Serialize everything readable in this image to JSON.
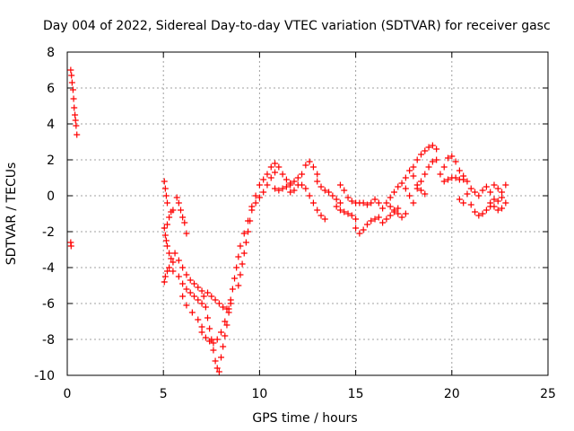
{
  "chart_data": {
    "type": "scatter",
    "title": "Day 004 of 2022, Sidereal Day-to-day VTEC variation (SDTVAR) for receiver gasc",
    "xlabel": "GPS time / hours",
    "ylabel": "SDTVAR / TECUs",
    "xlim": [
      0,
      25
    ],
    "ylim": [
      -10,
      8
    ],
    "xticks": [
      "0",
      "5",
      "10",
      "15",
      "20",
      "25"
    ],
    "yticks": [
      "-10",
      "-8",
      "-6",
      "-4",
      "-2",
      "0",
      "2",
      "4",
      "6",
      "8"
    ],
    "grid": true,
    "marker": "+",
    "series": [
      {
        "name": "SDTVAR",
        "color": "#ff0000",
        "points": [
          [
            0.18,
            7.0
          ],
          [
            0.22,
            6.7
          ],
          [
            0.25,
            6.3
          ],
          [
            0.3,
            5.9
          ],
          [
            0.33,
            5.4
          ],
          [
            0.36,
            4.9
          ],
          [
            0.4,
            4.5
          ],
          [
            0.43,
            4.2
          ],
          [
            0.46,
            3.9
          ],
          [
            0.5,
            3.4
          ],
          [
            0.18,
            -2.6
          ],
          [
            0.2,
            -2.8
          ],
          [
            5.05,
            0.8
          ],
          [
            5.1,
            0.4
          ],
          [
            5.15,
            0.0
          ],
          [
            5.2,
            -0.4
          ],
          [
            5.05,
            -1.8
          ],
          [
            5.1,
            -2.2
          ],
          [
            5.15,
            -2.5
          ],
          [
            5.2,
            -2.8
          ],
          [
            5.3,
            -3.2
          ],
          [
            5.4,
            -3.5
          ],
          [
            5.5,
            -3.7
          ],
          [
            5.2,
            -1.6
          ],
          [
            5.3,
            -1.2
          ],
          [
            5.4,
            -0.9
          ],
          [
            5.5,
            -0.8
          ],
          [
            5.05,
            -4.8
          ],
          [
            5.1,
            -4.5
          ],
          [
            5.2,
            -4.2
          ],
          [
            5.3,
            -4.0
          ],
          [
            5.5,
            -4.2
          ],
          [
            5.7,
            -0.1
          ],
          [
            5.8,
            -0.4
          ],
          [
            5.9,
            -0.8
          ],
          [
            6.0,
            -1.2
          ],
          [
            6.1,
            -1.5
          ],
          [
            6.2,
            -2.1
          ],
          [
            5.6,
            -3.2
          ],
          [
            5.8,
            -3.6
          ],
          [
            6.0,
            -4.0
          ],
          [
            6.2,
            -4.4
          ],
          [
            6.4,
            -4.7
          ],
          [
            6.6,
            -4.9
          ],
          [
            6.8,
            -5.1
          ],
          [
            7.0,
            -5.3
          ],
          [
            5.8,
            -4.5
          ],
          [
            6.0,
            -4.9
          ],
          [
            6.2,
            -5.2
          ],
          [
            6.4,
            -5.4
          ],
          [
            6.6,
            -5.6
          ],
          [
            6.8,
            -5.8
          ],
          [
            7.0,
            -6.0
          ],
          [
            6.0,
            -5.6
          ],
          [
            6.2,
            -6.1
          ],
          [
            6.5,
            -6.5
          ],
          [
            6.8,
            -6.9
          ],
          [
            7.0,
            -7.3
          ],
          [
            7.1,
            -5.6
          ],
          [
            7.2,
            -6.2
          ],
          [
            7.3,
            -6.8
          ],
          [
            7.4,
            -7.4
          ],
          [
            7.5,
            -8.0
          ],
          [
            7.6,
            -8.6
          ],
          [
            7.7,
            -9.2
          ],
          [
            7.8,
            -9.6
          ],
          [
            7.9,
            -9.8
          ],
          [
            7.0,
            -7.6
          ],
          [
            7.2,
            -7.9
          ],
          [
            7.4,
            -8.1
          ],
          [
            7.6,
            -8.2
          ],
          [
            7.8,
            -8.0
          ],
          [
            8.0,
            -7.6
          ],
          [
            8.2,
            -7.0
          ],
          [
            8.4,
            -6.3
          ],
          [
            7.3,
            -5.4
          ],
          [
            7.5,
            -5.6
          ],
          [
            7.7,
            -5.8
          ],
          [
            7.9,
            -6.0
          ],
          [
            8.1,
            -6.2
          ],
          [
            8.3,
            -6.3
          ],
          [
            8.5,
            -6.0
          ],
          [
            8.0,
            -9.0
          ],
          [
            8.1,
            -8.4
          ],
          [
            8.2,
            -7.8
          ],
          [
            8.3,
            -7.2
          ],
          [
            8.4,
            -6.5
          ],
          [
            8.5,
            -5.8
          ],
          [
            8.6,
            -5.2
          ],
          [
            8.7,
            -4.6
          ],
          [
            8.8,
            -4.0
          ],
          [
            8.9,
            -3.4
          ],
          [
            9.0,
            -2.8
          ],
          [
            9.2,
            -2.1
          ],
          [
            9.4,
            -1.4
          ],
          [
            9.6,
            -0.6
          ],
          [
            9.8,
            0.0
          ],
          [
            10.0,
            0.6
          ],
          [
            8.9,
            -5.0
          ],
          [
            9.0,
            -4.4
          ],
          [
            9.1,
            -3.8
          ],
          [
            9.2,
            -3.2
          ],
          [
            9.3,
            -2.6
          ],
          [
            9.4,
            -2.0
          ],
          [
            9.5,
            -1.4
          ],
          [
            9.6,
            -0.8
          ],
          [
            9.8,
            -0.4
          ],
          [
            10.0,
            -0.1
          ],
          [
            10.2,
            0.2
          ],
          [
            10.4,
            0.6
          ],
          [
            10.6,
            1.0
          ],
          [
            10.8,
            1.3
          ],
          [
            10.2,
            0.9
          ],
          [
            10.4,
            1.2
          ],
          [
            10.6,
            1.6
          ],
          [
            10.8,
            1.8
          ],
          [
            11.0,
            1.6
          ],
          [
            11.2,
            1.2
          ],
          [
            11.4,
            0.9
          ],
          [
            11.6,
            0.7
          ],
          [
            10.8,
            0.4
          ],
          [
            11.0,
            0.3
          ],
          [
            11.2,
            0.4
          ],
          [
            11.4,
            0.5
          ],
          [
            11.6,
            0.6
          ],
          [
            11.8,
            0.8
          ],
          [
            12.0,
            1.0
          ],
          [
            11.6,
            0.2
          ],
          [
            11.8,
            0.3
          ],
          [
            12.0,
            0.6
          ],
          [
            12.2,
            1.2
          ],
          [
            12.4,
            1.7
          ],
          [
            12.6,
            1.9
          ],
          [
            12.8,
            1.6
          ],
          [
            13.0,
            1.2
          ],
          [
            12.2,
            0.6
          ],
          [
            12.4,
            0.4
          ],
          [
            12.6,
            0.0
          ],
          [
            12.8,
            -0.4
          ],
          [
            13.0,
            -0.8
          ],
          [
            13.2,
            -1.1
          ],
          [
            13.4,
            -1.3
          ],
          [
            13.0,
            0.8
          ],
          [
            13.2,
            0.5
          ],
          [
            13.4,
            0.3
          ],
          [
            13.6,
            0.2
          ],
          [
            13.8,
            0.0
          ],
          [
            14.0,
            -0.2
          ],
          [
            14.2,
            -0.4
          ],
          [
            14.0,
            -0.6
          ],
          [
            14.2,
            -0.8
          ],
          [
            14.4,
            -0.9
          ],
          [
            14.6,
            -1.0
          ],
          [
            14.8,
            -1.1
          ],
          [
            15.0,
            -1.3
          ],
          [
            14.2,
            0.6
          ],
          [
            14.4,
            0.3
          ],
          [
            14.6,
            -0.1
          ],
          [
            14.8,
            -0.3
          ],
          [
            15.0,
            -0.4
          ],
          [
            15.2,
            -0.4
          ],
          [
            15.0,
            -1.8
          ],
          [
            15.2,
            -2.1
          ],
          [
            15.4,
            -1.9
          ],
          [
            15.6,
            -1.6
          ],
          [
            15.8,
            -1.4
          ],
          [
            16.0,
            -1.3
          ],
          [
            15.4,
            -0.4
          ],
          [
            15.6,
            -0.5
          ],
          [
            15.8,
            -0.4
          ],
          [
            16.0,
            -0.2
          ],
          [
            16.2,
            -0.4
          ],
          [
            16.4,
            -0.7
          ],
          [
            16.2,
            -1.2
          ],
          [
            16.4,
            -1.5
          ],
          [
            16.6,
            -1.3
          ],
          [
            16.8,
            -1.1
          ],
          [
            17.0,
            -0.9
          ],
          [
            17.2,
            -0.7
          ],
          [
            16.6,
            -0.4
          ],
          [
            16.8,
            -0.6
          ],
          [
            17.0,
            -0.8
          ],
          [
            17.2,
            -1.0
          ],
          [
            17.4,
            -1.2
          ],
          [
            17.6,
            -1.0
          ],
          [
            16.8,
            -0.1
          ],
          [
            17.0,
            0.2
          ],
          [
            17.2,
            0.5
          ],
          [
            17.4,
            0.7
          ],
          [
            17.6,
            0.4
          ],
          [
            17.8,
            0.0
          ],
          [
            18.0,
            -0.4
          ],
          [
            17.6,
            1.0
          ],
          [
            17.8,
            1.4
          ],
          [
            18.0,
            1.1
          ],
          [
            18.2,
            0.6
          ],
          [
            18.4,
            0.3
          ],
          [
            18.6,
            0.1
          ],
          [
            18.0,
            1.6
          ],
          [
            18.2,
            2.0
          ],
          [
            18.4,
            2.3
          ],
          [
            18.6,
            2.5
          ],
          [
            18.8,
            2.7
          ],
          [
            19.0,
            2.8
          ],
          [
            19.2,
            2.6
          ],
          [
            18.2,
            0.4
          ],
          [
            18.4,
            0.8
          ],
          [
            18.6,
            1.2
          ],
          [
            18.8,
            1.6
          ],
          [
            19.0,
            1.9
          ],
          [
            19.2,
            2.0
          ],
          [
            19.4,
            1.2
          ],
          [
            19.6,
            1.6
          ],
          [
            19.8,
            2.1
          ],
          [
            20.0,
            2.2
          ],
          [
            20.2,
            1.9
          ],
          [
            20.4,
            1.4
          ],
          [
            20.6,
            1.1
          ],
          [
            19.6,
            0.8
          ],
          [
            19.8,
            0.9
          ],
          [
            20.0,
            1.0
          ],
          [
            20.2,
            1.0
          ],
          [
            20.4,
            0.9
          ],
          [
            20.6,
            0.9
          ],
          [
            20.8,
            0.8
          ],
          [
            20.4,
            -0.2
          ],
          [
            20.6,
            -0.4
          ],
          [
            20.8,
            0.1
          ],
          [
            21.0,
            0.4
          ],
          [
            21.2,
            0.2
          ],
          [
            21.4,
            0.0
          ],
          [
            21.0,
            -0.5
          ],
          [
            21.2,
            -0.9
          ],
          [
            21.4,
            -1.1
          ],
          [
            21.6,
            -1.0
          ],
          [
            21.8,
            -0.8
          ],
          [
            22.0,
            -0.6
          ],
          [
            21.6,
            0.3
          ],
          [
            21.8,
            0.5
          ],
          [
            22.0,
            0.2
          ],
          [
            22.2,
            -0.2
          ],
          [
            22.4,
            -0.3
          ],
          [
            22.6,
            -0.1
          ],
          [
            22.0,
            -0.4
          ],
          [
            22.2,
            -0.6
          ],
          [
            22.4,
            -0.8
          ],
          [
            22.6,
            -0.7
          ],
          [
            22.8,
            -0.4
          ],
          [
            22.2,
            0.6
          ],
          [
            22.4,
            0.4
          ],
          [
            22.6,
            0.2
          ],
          [
            22.8,
            0.6
          ]
        ]
      }
    ]
  }
}
